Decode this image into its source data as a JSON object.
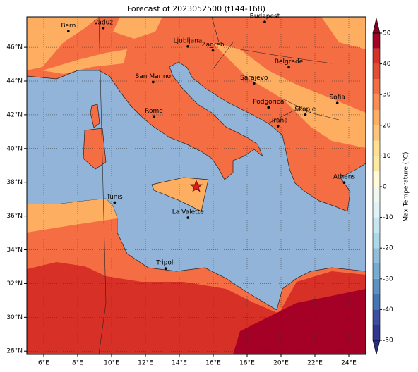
{
  "title": "Forecast of 2023052500 (f144-168)",
  "map": {
    "lonlim": [
      5,
      25
    ],
    "latlim": [
      27.8,
      47.8
    ],
    "lonticks": [
      {
        "value": 6,
        "label": "6°E"
      },
      {
        "value": 8,
        "label": "8°E"
      },
      {
        "value": 10,
        "label": "10°E"
      },
      {
        "value": 12,
        "label": "12°E"
      },
      {
        "value": 14,
        "label": "14°E"
      },
      {
        "value": 16,
        "label": "16°E"
      },
      {
        "value": 18,
        "label": "18°E"
      },
      {
        "value": 20,
        "label": "20°E"
      },
      {
        "value": 22,
        "label": "22°E"
      },
      {
        "value": 24,
        "label": "24°E"
      }
    ],
    "latticks": [
      {
        "value": 28,
        "label": "28°N"
      },
      {
        "value": 30,
        "label": "30°N"
      },
      {
        "value": 32,
        "label": "32°N"
      },
      {
        "value": 34,
        "label": "34°N"
      },
      {
        "value": 36,
        "label": "36°N"
      },
      {
        "value": 38,
        "label": "38°N"
      },
      {
        "value": 40,
        "label": "40°N"
      },
      {
        "value": 42,
        "label": "42°N"
      },
      {
        "value": 44,
        "label": "44°N"
      },
      {
        "value": 46,
        "label": "46°N"
      }
    ],
    "cities": [
      {
        "name": "Bern",
        "lon": 7.45,
        "lat": 46.95
      },
      {
        "name": "Vaduz",
        "lon": 9.52,
        "lat": 47.14
      },
      {
        "name": "Budapest",
        "lon": 19.04,
        "lat": 47.5
      },
      {
        "name": "Ljubljana",
        "lon": 14.5,
        "lat": 46.05
      },
      {
        "name": "Zagreb",
        "lon": 15.98,
        "lat": 45.81
      },
      {
        "name": "Belgrade",
        "lon": 20.46,
        "lat": 44.82
      },
      {
        "name": "San Marino",
        "lon": 12.45,
        "lat": 43.94
      },
      {
        "name": "Sarajevo",
        "lon": 18.41,
        "lat": 43.86
      },
      {
        "name": "Sofia",
        "lon": 23.32,
        "lat": 42.7
      },
      {
        "name": "Rome",
        "lon": 12.5,
        "lat": 41.9
      },
      {
        "name": "Podgorica",
        "lon": 19.26,
        "lat": 42.44
      },
      {
        "name": "Skopje",
        "lon": 21.43,
        "lat": 42.0
      },
      {
        "name": "Tirana",
        "lon": 19.82,
        "lat": 41.33
      },
      {
        "name": "Athens",
        "lon": 23.73,
        "lat": 37.98
      },
      {
        "name": "Tunis",
        "lon": 10.18,
        "lat": 36.8
      },
      {
        "name": "La Valette",
        "lon": 14.51,
        "lat": 35.9
      },
      {
        "name": "Tripoli",
        "lon": 13.19,
        "lat": 32.89
      }
    ],
    "marker": {
      "lon": 15.0,
      "lat": 37.75,
      "color": "#e31a1c"
    }
  },
  "colorbar": {
    "label": "Max Temperature (°C)",
    "lim": [
      -50,
      50
    ],
    "ticks": [
      -50,
      -40,
      -30,
      -20,
      -10,
      0,
      10,
      20,
      30,
      40,
      50
    ],
    "levels": [
      -50,
      -45,
      -40,
      -35,
      -30,
      -25,
      -20,
      -15,
      -10,
      -5,
      0,
      5,
      10,
      15,
      20,
      25,
      30,
      35,
      40,
      45,
      50
    ],
    "colors": [
      "#313695",
      "#3b4ea1",
      "#4575b4",
      "#5e90c4",
      "#74add1",
      "#91bfdb",
      "#abd9e9",
      "#c7e6f0",
      "#e0f3f8",
      "#f1f9ee",
      "#fffbd8",
      "#fee9a0",
      "#fee090",
      "#fdc47a",
      "#fdae61",
      "#f98d52",
      "#f46d43",
      "#e34e33",
      "#d73027",
      "#a50026"
    ],
    "under_color": "#262c80",
    "over_color": "#800026"
  }
}
